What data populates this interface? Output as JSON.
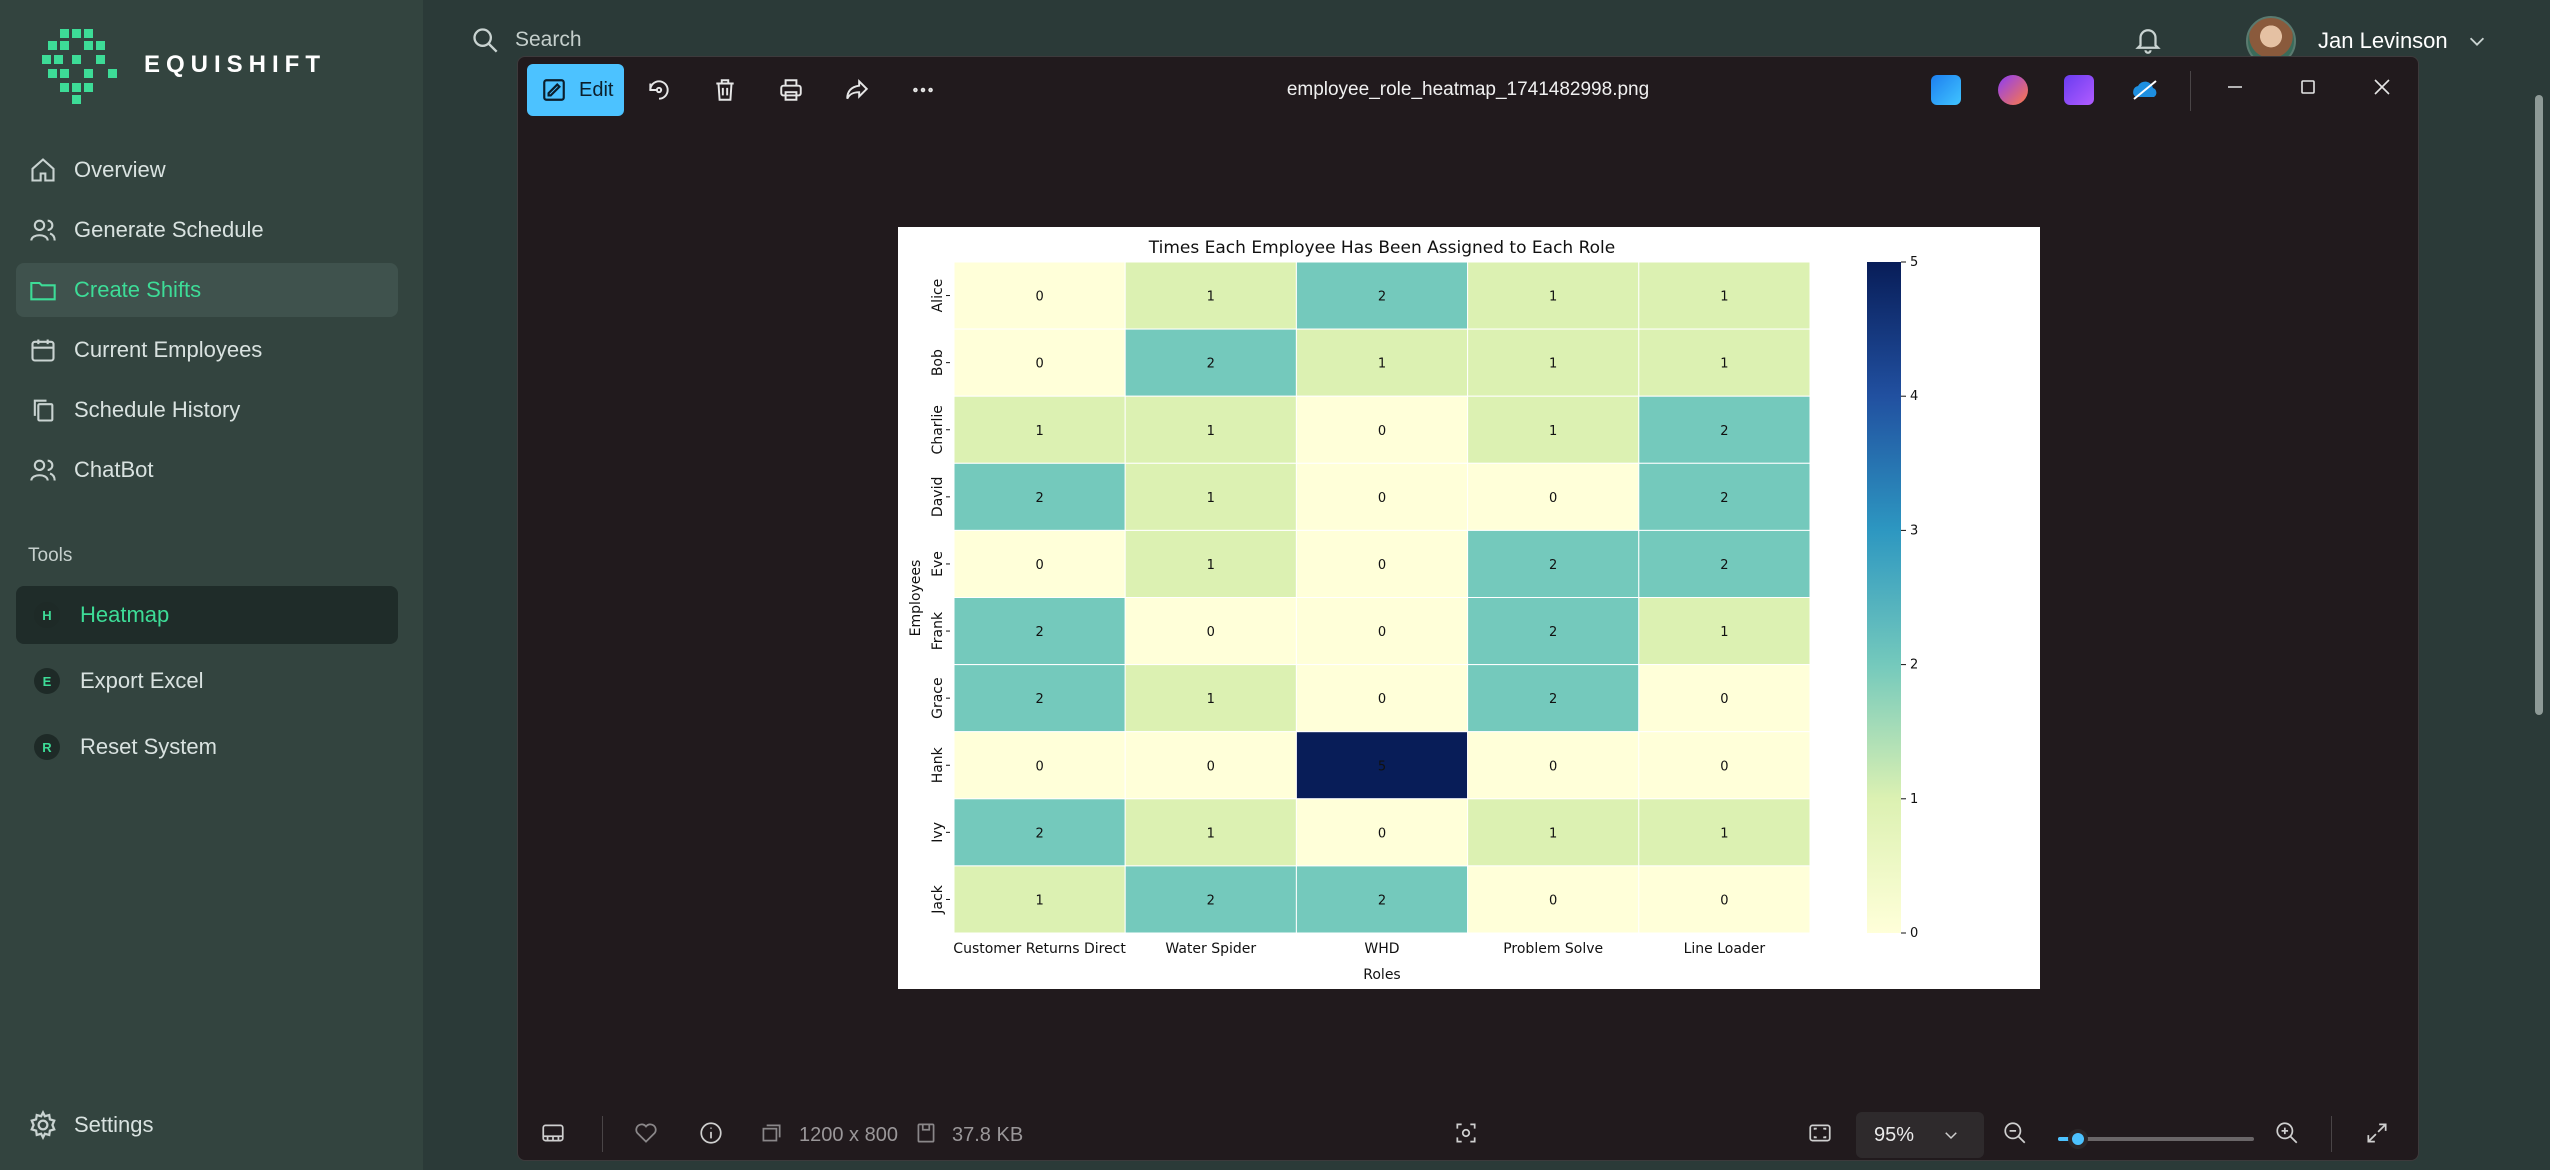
{
  "app": {
    "brand": "EQUISHIFT",
    "brand_color": "#3ddc97"
  },
  "sidebar": {
    "items": [
      {
        "label": "Overview",
        "icon": "home-icon"
      },
      {
        "label": "Generate Schedule",
        "icon": "users-icon"
      },
      {
        "label": "Create Shifts",
        "icon": "folder-icon",
        "active": true
      },
      {
        "label": "Current Employees",
        "icon": "calendar-icon"
      },
      {
        "label": "Schedule History",
        "icon": "copy-icon"
      },
      {
        "label": "ChatBot",
        "icon": "users-icon"
      }
    ],
    "tools_label": "Tools",
    "tools": [
      {
        "badge": "H",
        "label": "Heatmap",
        "active": true
      },
      {
        "badge": "E",
        "label": "Export Excel"
      },
      {
        "badge": "R",
        "label": "Reset System"
      }
    ],
    "settings_label": "Settings"
  },
  "topbar": {
    "search_placeholder": "Search",
    "user_name": "Jan Levinson"
  },
  "viewer": {
    "edit_label": "Edit",
    "file_name": "employee_role_heatmap_1741482998.png",
    "dimensions": "1200 x 800",
    "file_size": "37.8 KB",
    "zoom": "95%",
    "zoom_fraction": 0.1
  },
  "chart_data": {
    "type": "heatmap",
    "title": "Times Each Employee Has Been Assigned to Each Role",
    "xlabel": "Roles",
    "ylabel": "Employees",
    "x": [
      "Customer Returns Direct",
      "Water Spider",
      "WHD",
      "Problem Solve",
      "Line Loader"
    ],
    "y": [
      "Alice",
      "Bob",
      "Charlie",
      "David",
      "Eve",
      "Frank",
      "Grace",
      "Hank",
      "Ivy",
      "Jack"
    ],
    "values": [
      [
        0,
        1,
        2,
        1,
        1
      ],
      [
        0,
        2,
        1,
        1,
        1
      ],
      [
        1,
        1,
        0,
        1,
        2
      ],
      [
        2,
        1,
        0,
        0,
        2
      ],
      [
        0,
        1,
        0,
        2,
        2
      ],
      [
        2,
        0,
        0,
        2,
        1
      ],
      [
        2,
        1,
        0,
        2,
        0
      ],
      [
        0,
        0,
        5,
        0,
        0
      ],
      [
        2,
        1,
        0,
        1,
        1
      ],
      [
        1,
        2,
        2,
        0,
        0
      ]
    ],
    "colorbar": {
      "min": 0,
      "max": 5,
      "ticks": [
        "0",
        "1",
        "2",
        "3",
        "4",
        "5"
      ]
    },
    "colors": {
      "0": "#ffffd9",
      "1": "#dcf1b2",
      "2": "#74c9bc",
      "5": "#081d58"
    }
  }
}
